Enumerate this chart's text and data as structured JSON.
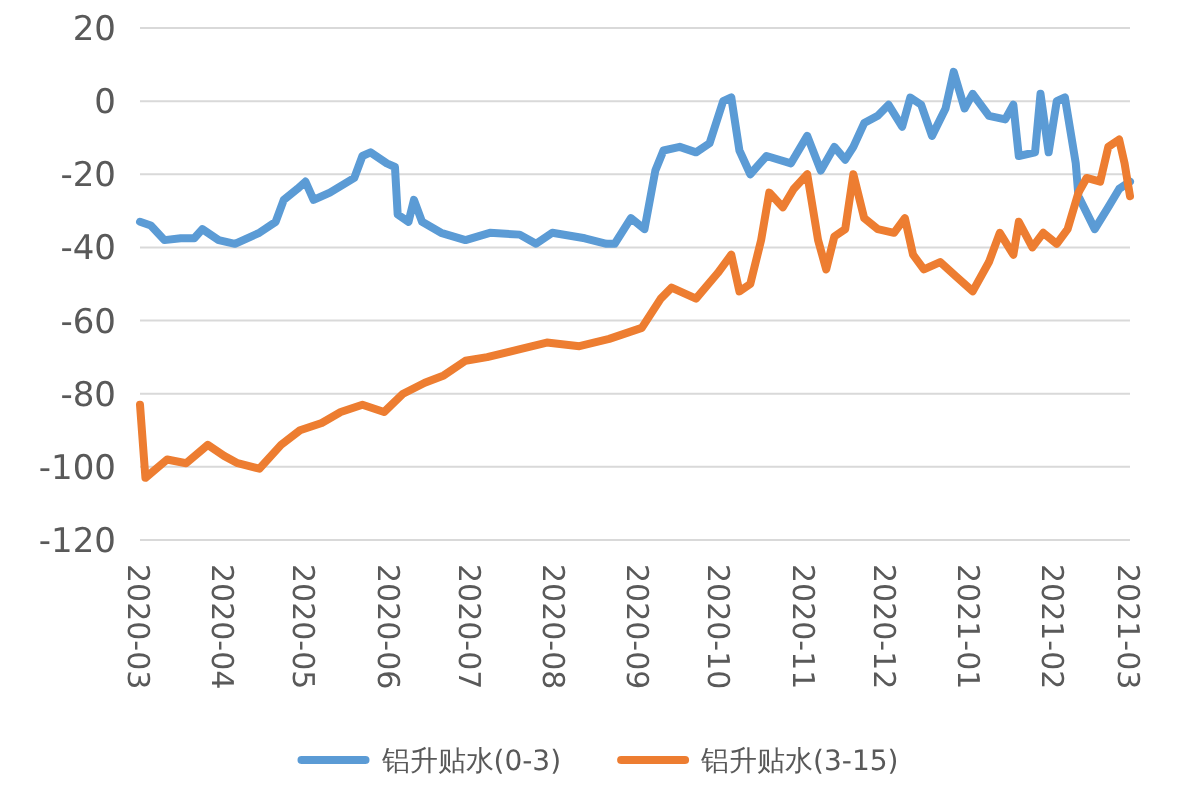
{
  "chart_data": {
    "type": "line",
    "xlim": [
      "2020-03-01",
      "2021-03-01"
    ],
    "ylim": [
      -120,
      20
    ],
    "xticks": [
      {
        "value": "2020-03-01",
        "label": "2020-03"
      },
      {
        "value": "2020-04-01",
        "label": "2020-04"
      },
      {
        "value": "2020-05-01",
        "label": "2020-05"
      },
      {
        "value": "2020-06-01",
        "label": "2020-06"
      },
      {
        "value": "2020-07-01",
        "label": "2020-07"
      },
      {
        "value": "2020-08-01",
        "label": "2020-08"
      },
      {
        "value": "2020-09-01",
        "label": "2020-09"
      },
      {
        "value": "2020-10-01",
        "label": "2020-10"
      },
      {
        "value": "2020-11-01",
        "label": "2020-11"
      },
      {
        "value": "2020-12-01",
        "label": "2020-12"
      },
      {
        "value": "2021-01-01",
        "label": "2021-01"
      },
      {
        "value": "2021-02-01",
        "label": "2021-02"
      },
      {
        "value": "2021-03-01",
        "label": "2021-03"
      }
    ],
    "yticks": [
      -120,
      -100,
      -80,
      -60,
      -40,
      -20,
      0,
      20
    ],
    "grid": "y",
    "legend": "bottom",
    "marker": "none",
    "line_style": "solid",
    "series": [
      {
        "name": "铝升贴水(0-3)",
        "color": "#5b9bd5",
        "x": [
          "2020-03-01",
          "2020-03-05",
          "2020-03-10",
          "2020-03-16",
          "2020-03-21",
          "2020-03-24",
          "2020-03-30",
          "2020-04-05",
          "2020-04-14",
          "2020-04-20",
          "2020-04-23",
          "2020-04-28",
          "2020-05-01",
          "2020-05-04",
          "2020-05-10",
          "2020-05-19",
          "2020-05-22",
          "2020-05-25",
          "2020-05-31",
          "2020-06-03",
          "2020-06-04",
          "2020-06-08",
          "2020-06-10",
          "2020-06-13",
          "2020-06-20",
          "2020-06-29",
          "2020-07-08",
          "2020-07-19",
          "2020-07-25",
          "2020-07-31",
          "2020-08-12",
          "2020-08-20",
          "2020-08-23",
          "2020-08-29",
          "2020-09-03",
          "2020-09-07",
          "2020-09-10",
          "2020-09-16",
          "2020-09-22",
          "2020-09-27",
          "2020-10-02",
          "2020-10-05",
          "2020-10-08",
          "2020-10-12",
          "2020-10-18",
          "2020-10-27",
          "2020-11-02",
          "2020-11-07",
          "2020-11-12",
          "2020-11-16",
          "2020-11-19",
          "2020-11-23",
          "2020-11-28",
          "2020-12-02",
          "2020-12-07",
          "2020-12-10",
          "2020-12-14",
          "2020-12-18",
          "2020-12-23",
          "2020-12-26",
          "2020-12-30",
          "2021-01-02",
          "2021-01-08",
          "2021-01-14",
          "2021-01-17",
          "2021-01-19",
          "2021-01-25",
          "2021-01-27",
          "2021-01-30",
          "2021-02-02",
          "2021-02-05",
          "2021-02-09",
          "2021-02-10",
          "2021-02-16",
          "2021-02-21",
          "2021-02-25",
          "2021-03-01"
        ],
        "values": [
          -33,
          -34,
          -38,
          -37.5,
          -37.5,
          -35,
          -38,
          -39,
          -36,
          -33,
          -27,
          -24,
          -22,
          -27,
          -25,
          -21,
          -15,
          -14,
          -17,
          -18,
          -31,
          -33,
          -27,
          -33,
          -36,
          -38,
          -36,
          -36.5,
          -39,
          -36,
          -37.5,
          -39,
          -39,
          -32,
          -35,
          -19,
          -13.5,
          -12.5,
          -14,
          -11.5,
          0,
          1,
          -13.5,
          -20,
          -15,
          -17,
          -9.5,
          -19,
          -12.5,
          -16,
          -12.5,
          -6,
          -4,
          -1,
          -7,
          1,
          -1,
          -9.5,
          -2,
          8,
          -2,
          2,
          -4,
          -5,
          -1,
          -15,
          -14,
          2,
          -14,
          0,
          1,
          -17,
          -26,
          -35,
          -29,
          -24,
          -22
        ]
      },
      {
        "name": "铝升贴水(3-15)",
        "color": "#ed7d31",
        "x": [
          "2020-03-01",
          "2020-03-03",
          "2020-03-11",
          "2020-03-18",
          "2020-03-26",
          "2020-04-01",
          "2020-04-06",
          "2020-04-14",
          "2020-04-22",
          "2020-04-29",
          "2020-05-07",
          "2020-05-14",
          "2020-05-22",
          "2020-05-30",
          "2020-06-06",
          "2020-06-14",
          "2020-06-21",
          "2020-06-29",
          "2020-07-07",
          "2020-07-18",
          "2020-07-29",
          "2020-08-10",
          "2020-08-21",
          "2020-09-02",
          "2020-09-09",
          "2020-09-13",
          "2020-09-22",
          "2020-09-30",
          "2020-10-05",
          "2020-10-08",
          "2020-10-12",
          "2020-10-16",
          "2020-10-19",
          "2020-10-24",
          "2020-10-28",
          "2020-11-02",
          "2020-11-06",
          "2020-11-09",
          "2020-11-12",
          "2020-11-16",
          "2020-11-19",
          "2020-11-23",
          "2020-11-28",
          "2020-12-04",
          "2020-12-08",
          "2020-12-11",
          "2020-12-15",
          "2020-12-21",
          "2020-12-27",
          "2021-01-02",
          "2021-01-08",
          "2021-01-12",
          "2021-01-17",
          "2021-01-19",
          "2021-01-24",
          "2021-01-28",
          "2021-02-02",
          "2021-02-06",
          "2021-02-10",
          "2021-02-13",
          "2021-02-18",
          "2021-02-21",
          "2021-02-25",
          "2021-02-27",
          "2021-03-01"
        ],
        "values": [
          -83,
          -103,
          -98,
          -99,
          -94,
          -97,
          -99,
          -100.5,
          -94,
          -90,
          -88,
          -85,
          -83,
          -85,
          -80,
          -77,
          -75,
          -71,
          -70,
          -68,
          -66,
          -67,
          -65,
          -62,
          -54,
          -51,
          -54,
          -47,
          -42,
          -52,
          -50,
          -38,
          -25,
          -29,
          -24,
          -20,
          -38,
          -46,
          -37,
          -35,
          -20,
          -32,
          -35,
          -36,
          -32,
          -42,
          -46,
          -44,
          -48,
          -52,
          -44,
          -36,
          -42,
          -33,
          -40,
          -36,
          -39,
          -35,
          -25,
          -21,
          -22,
          -12.5,
          -10.5,
          -17,
          -26
        ]
      }
    ]
  }
}
